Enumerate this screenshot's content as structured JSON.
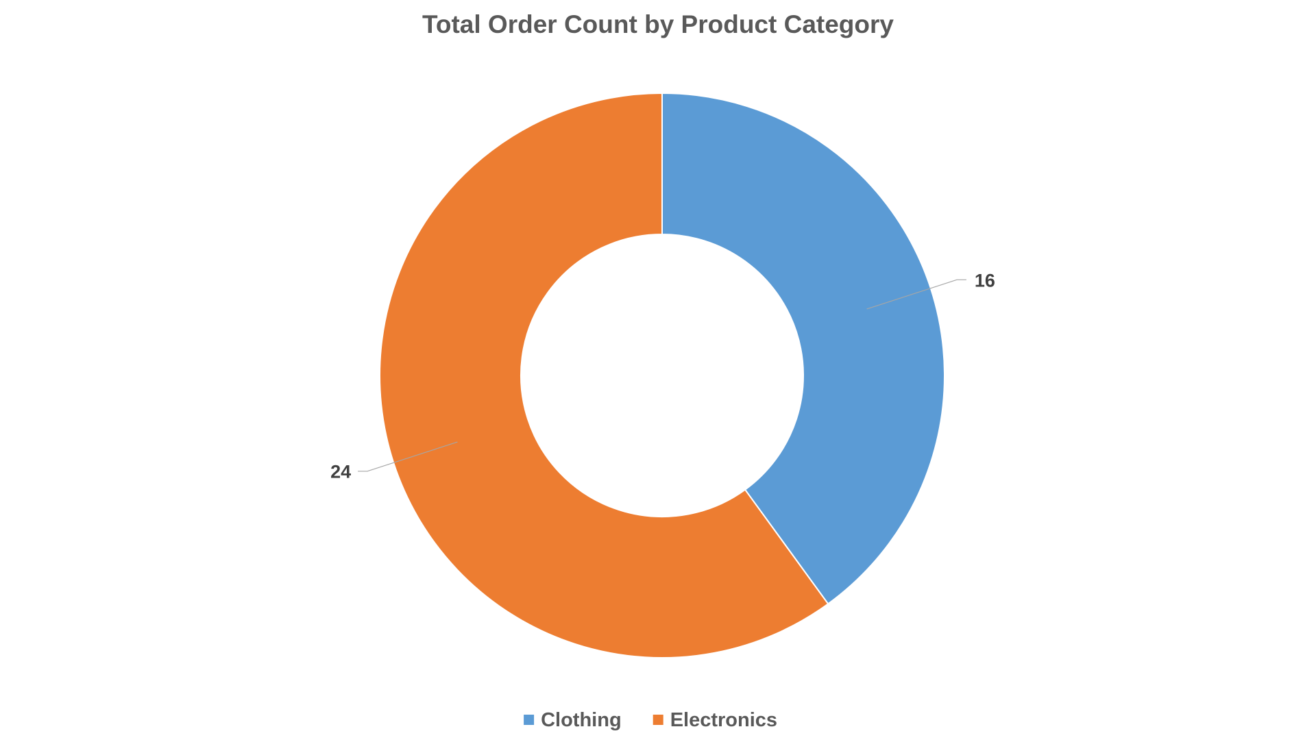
{
  "chart_data": {
    "type": "pie",
    "subtype": "doughnut",
    "title": "Total Order Count by Product Category",
    "categories": [
      "Clothing",
      "Electronics"
    ],
    "values": [
      16,
      24
    ],
    "colors": [
      "#5B9BD5",
      "#ED7D31"
    ],
    "data_labels": [
      "16",
      "24"
    ],
    "legend": {
      "position": "bottom",
      "entries": [
        "Clothing",
        "Electronics"
      ]
    }
  }
}
